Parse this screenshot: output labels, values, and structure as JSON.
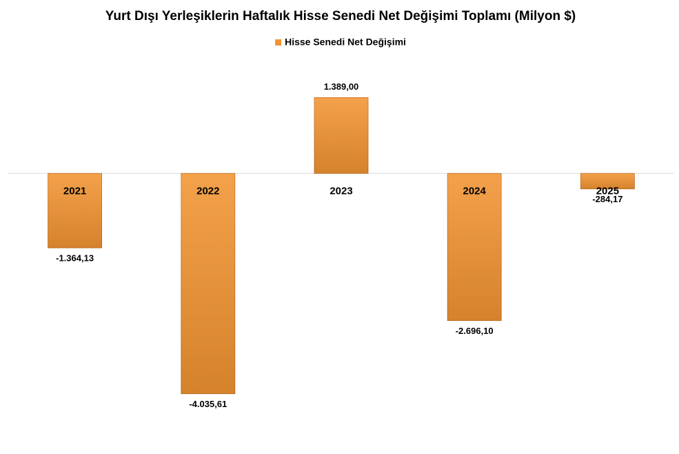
{
  "chart_data": {
    "type": "bar",
    "title": "Yurt Dışı Yerleşiklerin Haftalık Hisse Senedi Net Değişimi Toplamı (Milyon $)",
    "categories": [
      "2021",
      "2022",
      "2023",
      "2024",
      "2025"
    ],
    "series": [
      {
        "name": "Hisse Senedi Net Değişimi",
        "color": "#f29432",
        "values": [
          -1364.13,
          -4035.61,
          1389.0,
          -2696.1,
          -284.17
        ],
        "value_labels": [
          "-1.364,13",
          "-4.035,61",
          "1.389,00",
          "-2.696,10",
          "-284,17"
        ]
      }
    ],
    "ylim": [
      -5000,
      2000
    ],
    "legend": "top"
  }
}
